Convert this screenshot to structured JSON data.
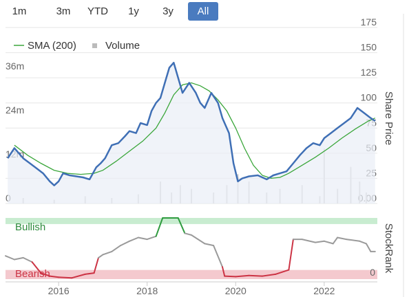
{
  "range_buttons": [
    {
      "label": "1m",
      "active": false
    },
    {
      "label": "3m",
      "active": false
    },
    {
      "label": "YTD",
      "active": false
    },
    {
      "label": "1y",
      "active": false
    },
    {
      "label": "3y",
      "active": false
    },
    {
      "label": "All",
      "active": true
    }
  ],
  "colors": {
    "price_line": "#3f6fb5",
    "sma_line": "#3aa63a",
    "volume_bars": "#d0d0d0",
    "bullish_band": "#c8ecd0",
    "bearish_band": "#f4c9ce",
    "bullish_text": "#2e8b3d",
    "bearish_text": "#cc3344",
    "rank_neutral": "#9a9a9a",
    "rank_bullish": "#2e9b3e",
    "rank_bearish": "#cc3344",
    "active_button": "#4a7bbf"
  },
  "chart_data": [
    {
      "type": "line",
      "legend": [
        "SMA (200)",
        "Volume"
      ],
      "ylabel": "Share Price",
      "y_ticks": [
        "175",
        "150",
        "125",
        "100",
        "75",
        "50",
        "25",
        "0.00"
      ],
      "ylim": [
        0,
        175
      ],
      "volume_ticks": [
        "36m",
        "24m",
        "12m",
        "0"
      ],
      "volume_lim": [
        0,
        48
      ],
      "xlim": [
        2014.8,
        2023.2
      ],
      "x_ticks": [
        "2016",
        "2018",
        "2020",
        "2022"
      ],
      "legend_position": "top-left",
      "series": [
        {
          "name": "Share Price",
          "x": [
            2014.85,
            2015.0,
            2015.2,
            2015.35,
            2015.5,
            2015.65,
            2015.8,
            2015.9,
            2016.0,
            2016.1,
            2016.25,
            2016.4,
            2016.55,
            2016.7,
            2016.85,
            2016.95,
            2017.05,
            2017.2,
            2017.35,
            2017.5,
            2017.6,
            2017.75,
            2017.85,
            2018.0,
            2018.1,
            2018.2,
            2018.3,
            2018.4,
            2018.5,
            2018.6,
            2018.7,
            2018.8,
            2018.95,
            2019.1,
            2019.2,
            2019.3,
            2019.45,
            2019.6,
            2019.7,
            2019.85,
            2019.95,
            2020.05,
            2020.15,
            2020.3,
            2020.5,
            2020.7,
            2020.85,
            2021.0,
            2021.15,
            2021.3,
            2021.45,
            2021.6,
            2021.75,
            2021.9,
            2022.0,
            2022.15,
            2022.3,
            2022.45,
            2022.6,
            2022.75,
            2022.9,
            2023.05,
            2023.15
          ],
          "y": [
            45,
            55,
            45,
            40,
            35,
            30,
            22,
            18,
            22,
            30,
            28,
            27,
            26,
            24,
            36,
            40,
            45,
            58,
            60,
            67,
            72,
            70,
            80,
            78,
            92,
            100,
            105,
            120,
            135,
            140,
            125,
            110,
            120,
            110,
            100,
            95,
            110,
            100,
            85,
            70,
            40,
            22,
            25,
            27,
            28,
            24,
            28,
            30,
            32,
            40,
            48,
            55,
            60,
            58,
            65,
            70,
            75,
            80,
            85,
            95,
            90,
            85,
            82
          ]
        },
        {
          "name": "SMA (200)",
          "x": [
            2015.0,
            2015.3,
            2015.6,
            2015.9,
            2016.2,
            2016.5,
            2016.8,
            2017.0,
            2017.3,
            2017.6,
            2017.9,
            2018.2,
            2018.4,
            2018.6,
            2018.8,
            2019.0,
            2019.2,
            2019.4,
            2019.6,
            2019.8,
            2020.0,
            2020.2,
            2020.4,
            2020.6,
            2020.8,
            2021.0,
            2021.2,
            2021.5,
            2021.8,
            2022.1,
            2022.4,
            2022.7,
            2023.0,
            2023.15
          ],
          "y": [
            58,
            48,
            40,
            33,
            30,
            29,
            30,
            33,
            42,
            52,
            62,
            75,
            90,
            108,
            118,
            120,
            117,
            112,
            103,
            92,
            75,
            55,
            38,
            28,
            25,
            26,
            30,
            38,
            46,
            55,
            65,
            74,
            82,
            85
          ]
        }
      ],
      "volume": {
        "x": [
          2015.2,
          2015.9,
          2016.6,
          2017.2,
          2017.8,
          2018.3,
          2018.55,
          2018.75,
          2019.0,
          2019.5,
          2019.8,
          2020.05,
          2020.3,
          2020.7,
          2021.0,
          2021.5,
          2021.9,
          2022.0,
          2022.3,
          2022.6,
          2022.8,
          2022.95
        ],
        "y": [
          1.5,
          1.0,
          2.0,
          1.5,
          2.5,
          6,
          3,
          5,
          4,
          3,
          5,
          8,
          6,
          3,
          4,
          5,
          2,
          15,
          4,
          10,
          6,
          3
        ]
      }
    },
    {
      "type": "line",
      "ylabel": "StockRank",
      "band_labels": {
        "bullish": "Bullish",
        "bearish": "Bearish"
      },
      "y_ticks": [
        "0"
      ],
      "ylim": [
        0,
        100
      ],
      "xlim": [
        2014.8,
        2023.2
      ],
      "series": [
        {
          "name": "StockRank",
          "x": [
            2014.8,
            2015.0,
            2015.2,
            2015.4,
            2015.6,
            2015.8,
            2016.0,
            2016.3,
            2016.6,
            2016.8,
            2016.9,
            2017.0,
            2017.2,
            2017.4,
            2017.6,
            2017.8,
            2018.0,
            2018.2,
            2018.35,
            2018.5,
            2018.7,
            2018.85,
            2019.0,
            2019.3,
            2019.5,
            2019.7,
            2019.75,
            2020.0,
            2020.3,
            2020.6,
            2020.9,
            2021.2,
            2021.3,
            2021.5,
            2021.8,
            2022.0,
            2022.2,
            2022.3,
            2022.5,
            2022.8,
            2022.95,
            2023.05,
            2023.15
          ],
          "y": [
            38,
            32,
            35,
            28,
            10,
            5,
            3,
            2,
            8,
            10,
            35,
            40,
            45,
            55,
            62,
            68,
            65,
            70,
            100,
            100,
            100,
            75,
            72,
            58,
            55,
            20,
            5,
            4,
            6,
            5,
            8,
            15,
            65,
            65,
            60,
            62,
            58,
            68,
            65,
            62,
            58,
            45,
            45
          ]
        }
      ]
    }
  ]
}
